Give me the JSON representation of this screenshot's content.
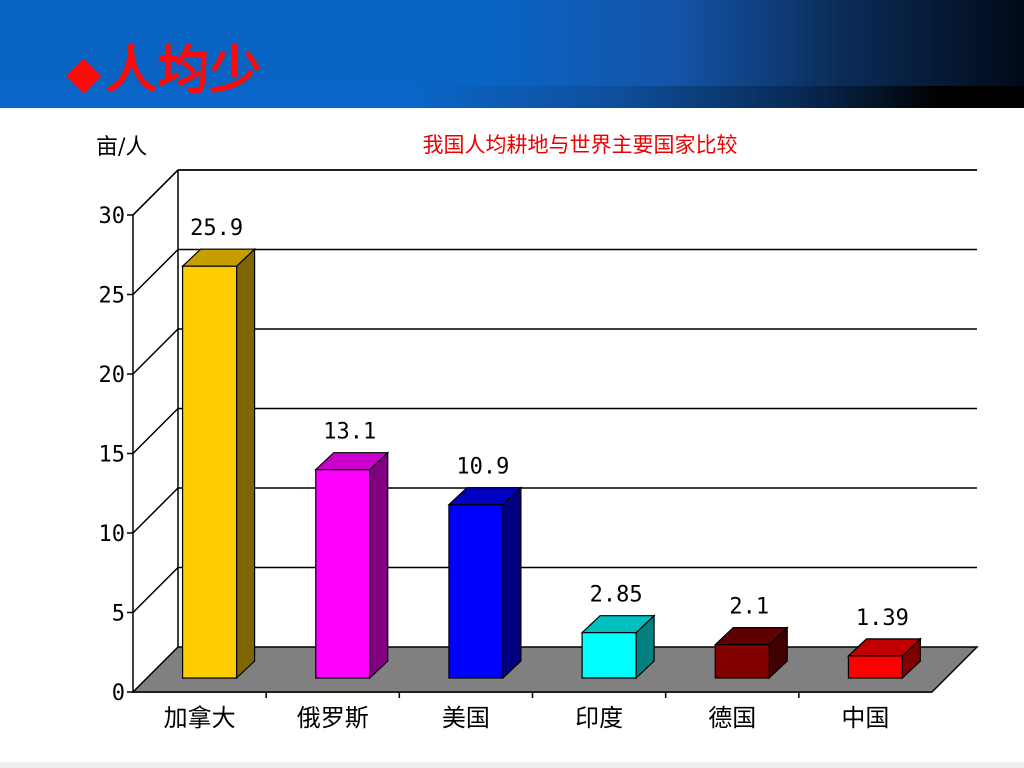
{
  "slide": {
    "title_icon": "diamond-icon",
    "title_icon_glyph": "◆",
    "title": "人均少"
  },
  "colors": {
    "header": "#0a64c4",
    "title": "#ff0a0a",
    "floor": "#808080"
  },
  "chart_data": {
    "type": "bar",
    "title": "我国人均耕地与世界主要国家比较",
    "ylabel": "亩/人",
    "xlabel": "",
    "categories": [
      "加拿大",
      "俄罗斯",
      "美国",
      "印度",
      "德国",
      "中国"
    ],
    "values": [
      25.9,
      13.1,
      10.9,
      2.85,
      2.1,
      1.39
    ],
    "value_labels": [
      "25.9",
      "13.1",
      "10.9",
      "2.85",
      "2.1",
      "1.39"
    ],
    "bar_colors": [
      {
        "front": "#ffcc00",
        "side": "#806600",
        "top": "#c79e00"
      },
      {
        "front": "#ff00ff",
        "side": "#800080",
        "top": "#cc00cc"
      },
      {
        "front": "#0000ff",
        "side": "#000080",
        "top": "#0000c0"
      },
      {
        "front": "#00ffff",
        "side": "#008080",
        "top": "#00c0c0"
      },
      {
        "front": "#800000",
        "side": "#400000",
        "top": "#600000"
      },
      {
        "front": "#ff0000",
        "side": "#800000",
        "top": "#c00000"
      }
    ],
    "ylim": [
      0,
      30
    ],
    "yticks": [
      "0",
      "5",
      "10",
      "15",
      "20",
      "25",
      "30"
    ],
    "ytick_values": [
      0,
      5,
      10,
      15,
      20,
      25,
      30
    ],
    "grid": true,
    "style": "3d-column",
    "legend": "none"
  }
}
